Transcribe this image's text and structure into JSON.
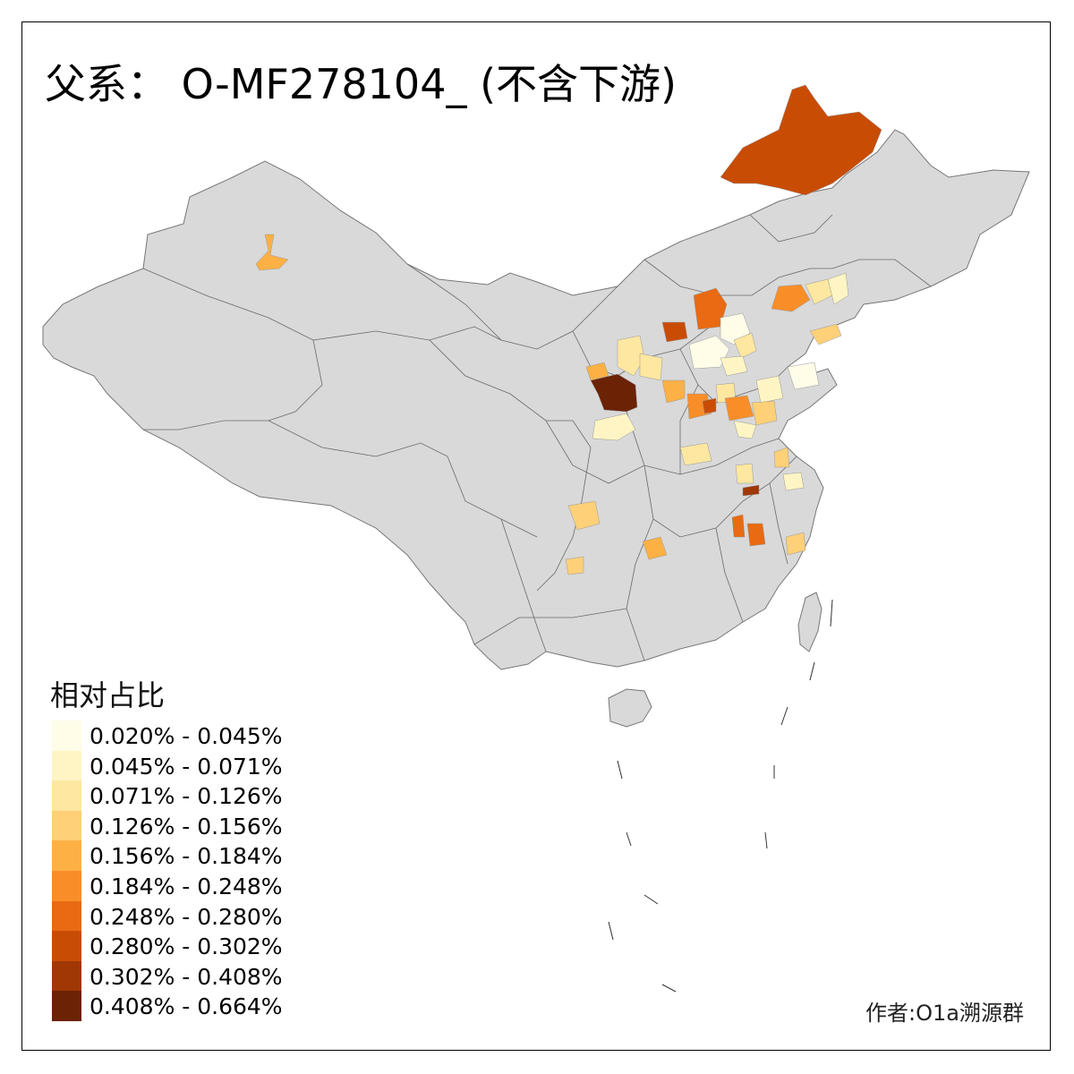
{
  "title": "父系： O-MF278104_ (不含下游)",
  "legend": {
    "title": "相对占比",
    "items": [
      {
        "label": "0.020% - 0.045%",
        "color": "#fffde8"
      },
      {
        "label": "0.045% - 0.071%",
        "color": "#fff5c4"
      },
      {
        "label": "0.071% - 0.126%",
        "color": "#fee7a0"
      },
      {
        "label": "0.126% - 0.156%",
        "color": "#fed078"
      },
      {
        "label": "0.156% - 0.184%",
        "color": "#fdb144"
      },
      {
        "label": "0.184% - 0.248%",
        "color": "#f98e28"
      },
      {
        "label": "0.248% - 0.280%",
        "color": "#e96a12"
      },
      {
        "label": "0.280% - 0.302%",
        "color": "#c94c05"
      },
      {
        "label": "0.302% - 0.408%",
        "color": "#a03705"
      },
      {
        "label": "0.408% - 0.664%",
        "color": "#6b2205"
      }
    ]
  },
  "credit": "作者:O1a溯源群",
  "colors": {
    "base_region": "#d9d9d9",
    "border": "#666666"
  }
}
